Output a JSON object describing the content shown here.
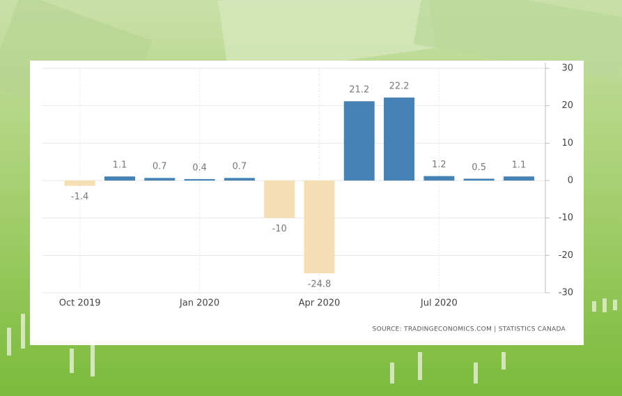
{
  "chart_data": {
    "type": "bar",
    "categories": [
      "Oct 2019",
      null,
      null,
      "Jan 2020",
      null,
      null,
      "Apr 2020",
      null,
      null,
      "Jul 2020",
      null,
      null
    ],
    "values": [
      -1.4,
      1.1,
      0.7,
      0.4,
      0.7,
      -10,
      -24.8,
      21.2,
      22.2,
      1.2,
      0.5,
      1.1
    ],
    "positive_color": "#4682b4",
    "negative_color": "#f5deb3",
    "ylim": [
      -30,
      30
    ],
    "yticks": [
      -30,
      -20,
      -10,
      0,
      10,
      20,
      30
    ],
    "grid": true,
    "source": "SOURCE: TRADINGECONOMICS.COM  |  STATISTICS CANADA"
  }
}
